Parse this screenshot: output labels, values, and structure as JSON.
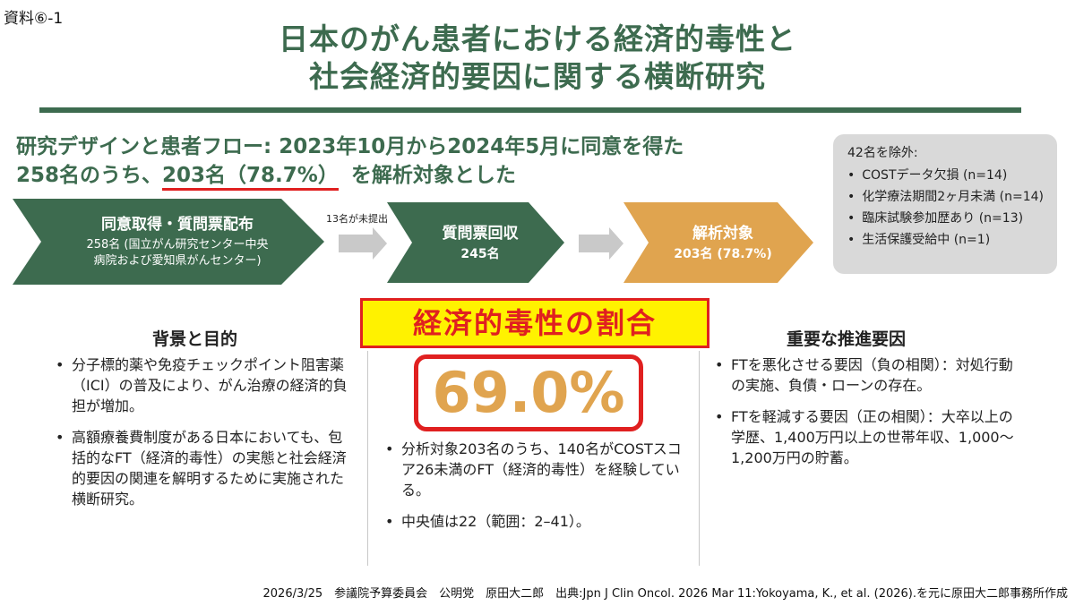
{
  "doc_label": "資料⑥-1",
  "title": {
    "line1": "日本のがん患者における経済的毒性と",
    "line2": "社会経済的要因に関する横断研究"
  },
  "design": {
    "line1": "研究デザインと患者フロー: 2023年10月から2024年5月に同意を得た",
    "line2_pre": "258名のうち、",
    "line2_hl": "203名（78.7%）",
    "line2_post": "を解析対象とした"
  },
  "flow": {
    "step1": {
      "title": "同意取得・質問票配布",
      "sub1": "258名 (国立がん研究センター中央",
      "sub2": "病院および愛知県がんセンター)"
    },
    "arrow_note": "13名が未提出",
    "step2": {
      "title": "質問票回収",
      "sub": "245名"
    },
    "step3": {
      "title": "解析対象",
      "sub": "203名 (78.7%)"
    }
  },
  "exclusion": {
    "head": "42名を除外:",
    "items": [
      "COSTデータ欠損 (n=14)",
      "化学療法期間2ヶ月未満 (n=14)",
      "臨床試験参加歴あり (n=13)",
      "生活保護受給中 (n=1)"
    ]
  },
  "background": {
    "heading": "背景と目的",
    "bullets": [
      "分子標的薬や免疫チェックポイント阻害薬（ICI）の普及により、がん治療の経済的負担が増加。",
      "高額療養費制度がある日本においても、包括的なFT（経済的毒性）の実態と社会経済的要因の関連を解明するために実施された横断研究。"
    ]
  },
  "prevalence": {
    "banner": "経済的毒性の割合",
    "value": "69.0%",
    "value_num": 69.0,
    "bullets": [
      "分析対象203名のうち、140名がCOSTスコア26未満のFT（経済的毒性）を経験している。",
      "中央値は22（範囲：2–41）。"
    ]
  },
  "drivers": {
    "heading": "重要な推進要因",
    "bullets": [
      "FTを悪化させる要因（負の相関）：対処行動の実施、負債・ローンの存在。",
      "FTを軽減する要因（正の相関）：大卒以上の学歴、1,400万円以上の世帯年収、1,000〜1,200万円の貯蓄。"
    ]
  },
  "footer": "2026/3/25　参議院予算委員会　公明党　原田大二郎　出典:Jpn J Clin Oncol. 2026 Mar 11:Yokoyama, K., et al. (2026).を元に原田大二郎事務所作成",
  "colors": {
    "green": "#3d6b4f",
    "orange": "#e0a44f",
    "red": "#e02020",
    "yellow": "#fff200"
  }
}
